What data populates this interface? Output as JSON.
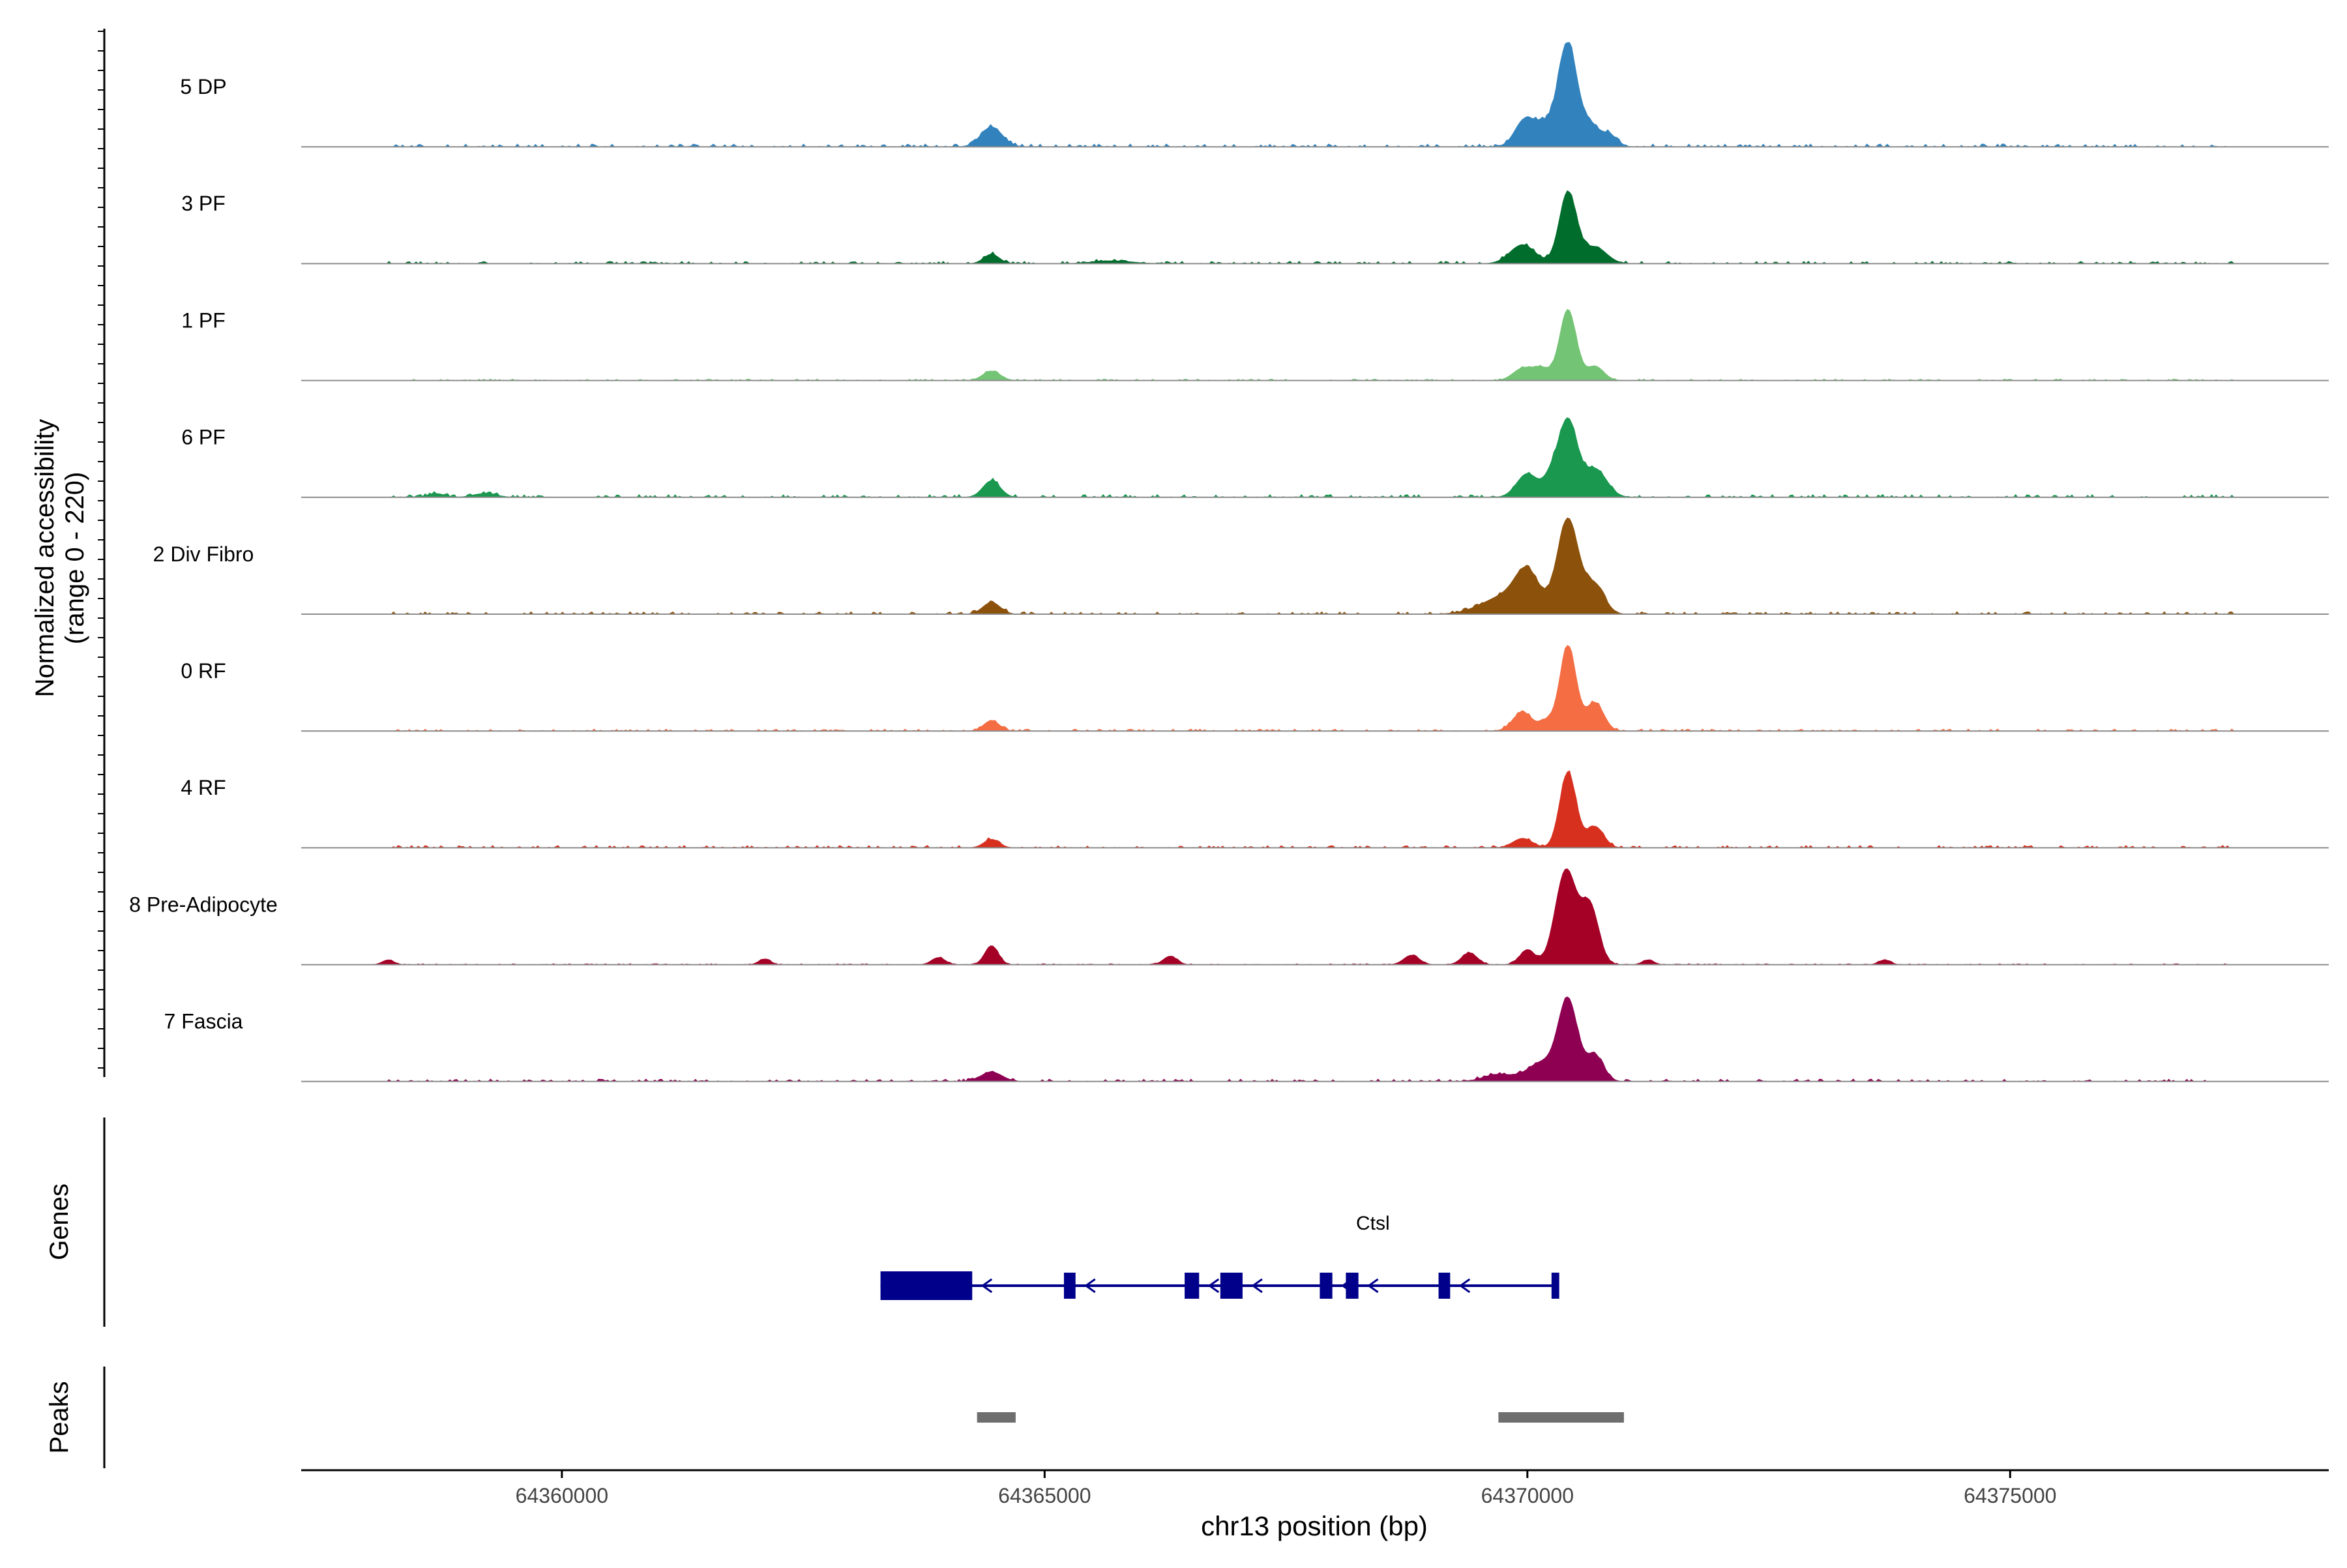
{
  "chart_data": {
    "type": "area",
    "title": "",
    "chromosome": "chr13",
    "xlabel": "chr13 position (bp)",
    "ylabel_line1": "Normalized accessibility",
    "ylabel_line2": "(range 0 - 220)",
    "y_range": [
      0,
      220
    ],
    "xlim": [
      64357300,
      64378300
    ],
    "x_ticks": [
      64360000,
      64365000,
      64370000,
      64375000
    ],
    "x_tick_labels": [
      "64360000",
      "64365000",
      "64370000",
      "64375000"
    ],
    "tracks": [
      {
        "name": "5 DP",
        "color": "#3182bd",
        "peaks": [
          [
            64364450,
            42,
            110
          ],
          [
            64370150,
            50,
            160
          ],
          [
            64370420,
            210,
            95
          ],
          [
            64370650,
            45,
            90
          ],
          [
            64370850,
            25,
            80
          ],
          [
            64369950,
            35,
            90
          ]
        ],
        "noise": 6,
        "seed": 11
      },
      {
        "name": "3 PF",
        "color": "#006d2c",
        "peaks": [
          [
            64364450,
            20,
            80
          ],
          [
            64369950,
            40,
            130
          ],
          [
            64370420,
            150,
            90
          ],
          [
            64370700,
            35,
            120
          ],
          [
            64365700,
            6,
            200
          ]
        ],
        "noise": 5,
        "seed": 23
      },
      {
        "name": "1 PF",
        "color": "#74c476",
        "peaks": [
          [
            64364450,
            20,
            90
          ],
          [
            64369950,
            25,
            100
          ],
          [
            64370420,
            150,
            85
          ],
          [
            64370700,
            30,
            90
          ],
          [
            64370150,
            25,
            90
          ]
        ],
        "noise": 3,
        "seed": 37
      },
      {
        "name": "6 PF",
        "color": "#1a9850",
        "peaks": [
          [
            64364450,
            35,
            90
          ],
          [
            64370000,
            50,
            110
          ],
          [
            64370420,
            160,
            95
          ],
          [
            64370700,
            60,
            120
          ],
          [
            64370250,
            40,
            80
          ],
          [
            64358700,
            8,
            80
          ],
          [
            64359200,
            8,
            120
          ]
        ],
        "noise": 6,
        "seed": 41
      },
      {
        "name": "2 Div Fibro",
        "color": "#8c510a",
        "peaks": [
          [
            64364450,
            25,
            90
          ],
          [
            64369800,
            40,
            250
          ],
          [
            64370000,
            70,
            120
          ],
          [
            64370420,
            200,
            110
          ],
          [
            64370700,
            60,
            100
          ]
        ],
        "noise": 5,
        "seed": 53
      },
      {
        "name": "0 RF",
        "color": "#f46d43",
        "peaks": [
          [
            64364450,
            22,
            80
          ],
          [
            64369950,
            40,
            100
          ],
          [
            64370420,
            180,
            85
          ],
          [
            64370700,
            60,
            90
          ],
          [
            64370200,
            20,
            70
          ]
        ],
        "noise": 4,
        "seed": 67
      },
      {
        "name": "4 RF",
        "color": "#d7301f",
        "peaks": [
          [
            64364450,
            18,
            80
          ],
          [
            64369950,
            20,
            100
          ],
          [
            64370420,
            160,
            85
          ],
          [
            64370700,
            45,
            90
          ]
        ],
        "noise": 5,
        "seed": 71
      },
      {
        "name": "8 Pre-Adipocyte",
        "color": "#a50026",
        "peaks": [
          [
            64364450,
            40,
            70
          ],
          [
            64370400,
            200,
            110
          ],
          [
            64370650,
            120,
            90
          ],
          [
            64370000,
            30,
            80
          ],
          [
            64369400,
            25,
            80
          ],
          [
            64368800,
            20,
            80
          ],
          [
            64366300,
            18,
            70
          ],
          [
            64363900,
            15,
            70
          ],
          [
            64358200,
            10,
            60
          ],
          [
            64362100,
            12,
            60
          ],
          [
            64371250,
            10,
            60
          ],
          [
            64373700,
            10,
            60
          ]
        ],
        "noise": 2,
        "seed": 83
      },
      {
        "name": "7 Fascia",
        "color": "#8e0152",
        "peaks": [
          [
            64364450,
            20,
            110
          ],
          [
            64370150,
            40,
            150
          ],
          [
            64370420,
            170,
            100
          ],
          [
            64370700,
            55,
            90
          ],
          [
            64369700,
            15,
            150
          ]
        ],
        "noise": 5,
        "seed": 97
      }
    ],
    "genes_panel_label": "Genes",
    "gene": {
      "name": "Ctsl",
      "strand": "-",
      "start": 64363300,
      "end": 64370300,
      "exons": [
        [
          64363300,
          64364250
        ],
        [
          64365200,
          64365320
        ],
        [
          64366450,
          64366600
        ],
        [
          64366820,
          64367050
        ],
        [
          64367850,
          64367980
        ],
        [
          64368120,
          64368250
        ],
        [
          64369080,
          64369200
        ],
        [
          64370250,
          64370330
        ]
      ]
    },
    "peaks_panel_label": "Peaks",
    "peak_regions": [
      [
        64364300,
        64364700
      ],
      [
        64369700,
        64371000
      ]
    ],
    "colors": {
      "gene": "#00008b",
      "peak": "#6e6e6e",
      "baseline": "#8c8c8c",
      "axis": "#000000"
    }
  }
}
